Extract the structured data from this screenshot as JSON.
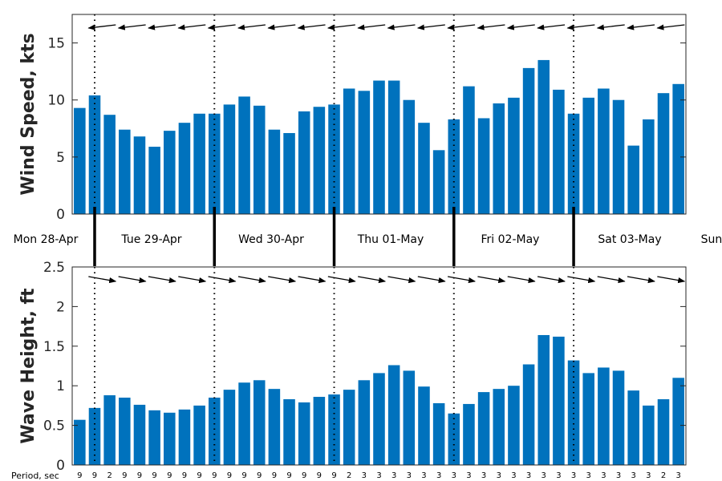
{
  "chart_data": [
    {
      "type": "bar",
      "ylabel": "Wind Speed, kts",
      "ylim": [
        0,
        17.5
      ],
      "yticks": [
        0,
        5,
        10,
        15
      ],
      "grid": false,
      "color": "#0072BD",
      "values": [
        9.3,
        10.4,
        8.7,
        7.4,
        6.8,
        5.9,
        7.3,
        8.0,
        8.8,
        8.8,
        9.6,
        10.3,
        9.5,
        7.4,
        7.1,
        9.0,
        9.4,
        9.6,
        11.0,
        10.8,
        11.7,
        11.7,
        10.0,
        8.0,
        5.6,
        8.3,
        11.2,
        8.4,
        9.7,
        10.2,
        12.8,
        13.5,
        10.9,
        8.8,
        10.2,
        11.0,
        10.0,
        6.0,
        8.3,
        10.6,
        11.4
      ],
      "direction_arrows": "westward (wind from the east)"
    },
    {
      "type": "bar",
      "ylabel": "Wave Height, ft",
      "ylim": [
        0,
        2.5
      ],
      "yticks": [
        "0",
        "0.5",
        "1",
        "1.5",
        "2",
        "2.5"
      ],
      "grid": false,
      "color": "#0072BD",
      "values": [
        0.57,
        0.72,
        0.88,
        0.85,
        0.76,
        0.69,
        0.66,
        0.7,
        0.75,
        0.85,
        0.95,
        1.04,
        1.07,
        0.96,
        0.83,
        0.79,
        0.86,
        0.89,
        0.95,
        1.07,
        1.16,
        1.26,
        1.19,
        0.99,
        0.78,
        0.65,
        0.77,
        0.92,
        0.96,
        1.0,
        1.27,
        1.64,
        1.62,
        1.32,
        1.16,
        1.23,
        1.19,
        0.94,
        0.75,
        0.83,
        1.1
      ],
      "periods": [
        "9",
        "9",
        "2",
        "9",
        "9",
        "9",
        "9",
        "9",
        "9",
        "9",
        "9",
        "9",
        "9",
        "9",
        "9",
        "9",
        "9",
        "9",
        "2",
        "3",
        "3",
        "3",
        "3",
        "3",
        "3",
        "3",
        "3",
        "3",
        "3",
        "3",
        "3",
        "3",
        "3",
        "3",
        "3",
        "3",
        "3",
        "3",
        "3",
        "2",
        "3"
      ],
      "period_label": "Period, sec",
      "direction_arrows": "eastward"
    }
  ],
  "days": [
    "Mon 28-Apr",
    "Tue 29-Apr",
    "Wed 30-Apr",
    "Thu 01-May",
    "Fri 02-May",
    "Sat 03-May",
    "Sun"
  ]
}
